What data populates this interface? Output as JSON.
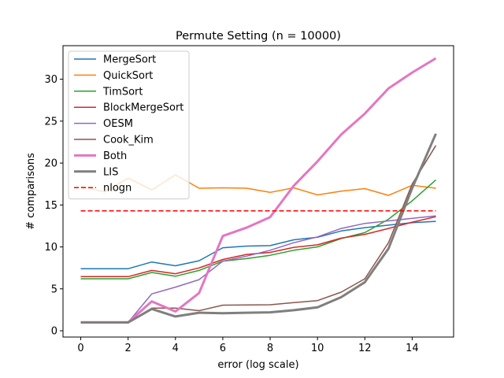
{
  "chart_data": {
    "type": "line",
    "title": "Permute Setting (n = 10000)",
    "xlabel": "error (log scale)",
    "ylabel": "# comparisons",
    "xlim": [
      -0.75,
      15.75
    ],
    "ylim": [
      -0.75,
      34.0
    ],
    "xticks": [
      0,
      2,
      4,
      6,
      8,
      10,
      12,
      14
    ],
    "yticks": [
      0,
      5,
      10,
      15,
      20,
      25,
      30
    ],
    "grid": false,
    "legend_position": "top-left",
    "x": [
      0,
      1,
      2,
      3,
      4,
      5,
      6,
      7,
      8,
      9,
      10,
      11,
      12,
      13,
      14,
      15
    ],
    "series": [
      {
        "name": "MergeSort",
        "color": "#1f77b4",
        "width": 1.5,
        "dash": "",
        "values": [
          7.4,
          7.4,
          7.4,
          8.2,
          7.75,
          8.35,
          9.9,
          10.1,
          10.15,
          10.85,
          11.15,
          11.9,
          12.3,
          12.6,
          12.9,
          13.05
        ]
      },
      {
        "name": "QuickSort",
        "color": "#ff7f0e",
        "width": 1.5,
        "dash": "",
        "values": [
          17.25,
          16.55,
          18.2,
          16.8,
          18.6,
          17.0,
          17.05,
          17.0,
          16.5,
          17.05,
          16.2,
          16.65,
          16.95,
          16.15,
          17.35,
          17.0
        ]
      },
      {
        "name": "TimSort",
        "color": "#2ca02c",
        "width": 1.5,
        "dash": "",
        "values": [
          6.2,
          6.2,
          6.2,
          6.95,
          6.5,
          7.2,
          8.3,
          8.6,
          9.0,
          9.6,
          10.0,
          11.0,
          11.7,
          13.3,
          15.5,
          18.0
        ]
      },
      {
        "name": "BlockMergeSort",
        "color": "#d62728",
        "width": 1.5,
        "dash": "",
        "values": [
          6.45,
          6.45,
          6.45,
          7.2,
          6.8,
          7.5,
          8.5,
          9.1,
          9.35,
          9.95,
          10.25,
          11.05,
          11.5,
          12.2,
          12.95,
          13.6
        ]
      },
      {
        "name": "OESM",
        "color": "#9467bd",
        "width": 1.5,
        "dash": "",
        "values": [
          1.0,
          1.0,
          1.0,
          4.4,
          5.2,
          6.1,
          8.3,
          8.9,
          9.6,
          10.5,
          11.2,
          12.2,
          12.8,
          13.1,
          13.4,
          13.7
        ]
      },
      {
        "name": "Cook_Kim",
        "color": "#8c564b",
        "width": 1.5,
        "dash": "",
        "values": [
          1.0,
          1.0,
          1.0,
          2.7,
          2.7,
          2.4,
          3.05,
          3.08,
          3.1,
          3.35,
          3.6,
          4.6,
          6.2,
          10.5,
          17.5,
          22.1
        ]
      },
      {
        "name": "Both",
        "color": "#e377c2",
        "width": 3,
        "dash": "",
        "values": [
          1.0,
          1.0,
          1.0,
          3.5,
          2.3,
          4.5,
          11.3,
          12.3,
          13.55,
          17.3,
          20.2,
          23.4,
          25.9,
          28.9,
          30.8,
          32.5
        ]
      },
      {
        "name": "LIS",
        "color": "#7f7f7f",
        "width": 3,
        "dash": "",
        "values": [
          1.0,
          1.0,
          1.0,
          2.6,
          1.7,
          2.15,
          2.1,
          2.15,
          2.2,
          2.45,
          2.8,
          4.0,
          5.8,
          9.8,
          17.0,
          23.5
        ]
      },
      {
        "name": "nlogn",
        "color": "#ff0000",
        "width": 1.5,
        "dash": "6,3",
        "values": [
          14.3,
          14.3,
          14.3,
          14.3,
          14.3,
          14.3,
          14.3,
          14.3,
          14.3,
          14.3,
          14.3,
          14.3,
          14.3,
          14.3,
          14.3,
          14.3
        ]
      }
    ]
  }
}
